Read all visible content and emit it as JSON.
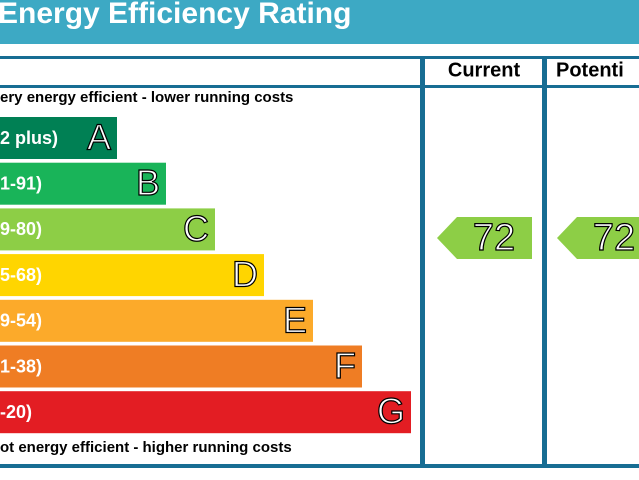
{
  "header": {
    "title": "Energy Efficiency Rating"
  },
  "columns": [
    "Current",
    "Potenti"
  ],
  "top_note": "ery energy efficient - lower running costs",
  "bottom_note": "ot energy efficient - higher running costs",
  "bands": [
    {
      "range": "2 plus)",
      "letter": "A",
      "color": "#008054"
    },
    {
      "range": "1-91)",
      "letter": "B",
      "color": "#19b459"
    },
    {
      "range": "9-80)",
      "letter": "C",
      "color": "#8dce46"
    },
    {
      "range": "5-68)",
      "letter": "D",
      "color": "#ffd500"
    },
    {
      "range": "9-54)",
      "letter": "E",
      "color": "#fcaa2a"
    },
    {
      "range": "1-38)",
      "letter": "F",
      "color": "#ef7d24"
    },
    {
      "range": "-20)",
      "letter": "G",
      "color": "#e31d23"
    }
  ],
  "ratings": [
    {
      "text": "72",
      "color": "#8dce46"
    },
    {
      "text": "72",
      "color": "#8dce46"
    }
  ]
}
